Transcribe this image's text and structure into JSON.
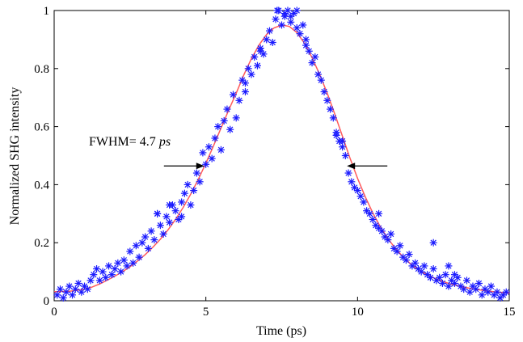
{
  "chart_data": {
    "type": "scatter",
    "xlabel": "Time (ps)",
    "ylabel": "Normalized SHG intensity",
    "xlim": [
      0,
      15
    ],
    "ylim": [
      0,
      1
    ],
    "xticks": [
      "0",
      "5",
      "10",
      "15"
    ],
    "yticks": [
      "0",
      "0.2",
      "0.4",
      "0.6",
      "0.8",
      "1"
    ],
    "grid": false,
    "annotation": {
      "prefix": "FWHM= 4.7 ",
      "unit": "ps",
      "fwhm_from": 4.95,
      "fwhm_to": 9.65,
      "level": 0.47
    },
    "series": [
      {
        "kind": "markers",
        "marker": "asterisk",
        "color": "#1a1aff",
        "x": [
          0.1,
          0.2,
          0.3,
          0.4,
          0.5,
          0.6,
          0.7,
          0.8,
          0.9,
          1.0,
          1.1,
          1.2,
          1.3,
          1.4,
          1.5,
          1.6,
          1.7,
          1.8,
          1.9,
          2.0,
          2.1,
          2.2,
          2.3,
          2.4,
          2.5,
          2.6,
          2.7,
          2.8,
          2.9,
          3.0,
          3.1,
          3.2,
          3.3,
          3.4,
          3.5,
          3.6,
          3.7,
          3.8,
          3.9,
          4.0,
          4.1,
          4.2,
          4.3,
          4.4,
          4.5,
          4.6,
          4.7,
          4.8,
          4.9,
          5.0,
          5.1,
          5.2,
          5.3,
          5.4,
          5.5,
          5.6,
          5.7,
          5.8,
          5.9,
          6.0,
          6.1,
          6.2,
          6.3,
          6.4,
          6.5,
          6.6,
          6.7,
          6.8,
          6.9,
          7.0,
          7.1,
          7.2,
          7.3,
          7.4,
          7.5,
          7.6,
          7.7,
          7.8,
          7.9,
          8.0,
          8.1,
          8.2,
          8.3,
          8.4,
          8.5,
          8.6,
          8.7,
          8.8,
          8.9,
          9.0,
          9.1,
          9.2,
          9.3,
          9.4,
          9.5,
          9.6,
          9.7,
          9.8,
          9.9,
          10.0,
          10.1,
          10.2,
          10.3,
          10.4,
          10.5,
          10.6,
          10.7,
          10.8,
          10.9,
          11.0,
          11.1,
          11.2,
          11.3,
          11.4,
          11.5,
          11.6,
          11.7,
          11.8,
          11.9,
          12.0,
          12.1,
          12.2,
          12.3,
          12.4,
          12.5,
          12.6,
          12.7,
          12.8,
          12.9,
          13.0,
          13.1,
          13.2,
          13.3,
          13.4,
          13.5,
          13.6,
          13.7,
          13.8,
          13.9,
          14.0,
          14.1,
          14.2,
          14.3,
          14.4,
          14.5,
          14.6,
          14.7,
          14.8,
          14.9,
          3.4,
          3.8,
          4.2,
          6.3,
          6.8,
          7.35,
          7.6,
          7.8,
          8.0,
          8.3,
          9.3,
          9.5,
          10.7,
          12.5,
          13.0,
          13.2
        ],
        "y": [
          0.02,
          0.04,
          0.01,
          0.03,
          0.05,
          0.02,
          0.04,
          0.06,
          0.03,
          0.05,
          0.04,
          0.07,
          0.09,
          0.11,
          0.07,
          0.1,
          0.08,
          0.12,
          0.09,
          0.11,
          0.13,
          0.1,
          0.14,
          0.12,
          0.17,
          0.13,
          0.19,
          0.15,
          0.2,
          0.22,
          0.18,
          0.24,
          0.21,
          0.3,
          0.26,
          0.23,
          0.29,
          0.27,
          0.33,
          0.31,
          0.28,
          0.34,
          0.37,
          0.4,
          0.33,
          0.38,
          0.44,
          0.41,
          0.51,
          0.47,
          0.53,
          0.49,
          0.56,
          0.6,
          0.52,
          0.62,
          0.66,
          0.59,
          0.71,
          0.63,
          0.69,
          0.76,
          0.72,
          0.8,
          0.78,
          0.84,
          0.81,
          0.87,
          0.85,
          0.9,
          0.93,
          0.89,
          0.97,
          1.0,
          0.95,
          0.98,
          1.0,
          0.96,
          0.99,
          0.94,
          0.92,
          0.95,
          0.88,
          0.86,
          0.82,
          0.84,
          0.78,
          0.76,
          0.72,
          0.69,
          0.66,
          0.63,
          0.57,
          0.55,
          0.53,
          0.5,
          0.44,
          0.41,
          0.39,
          0.38,
          0.36,
          0.34,
          0.31,
          0.3,
          0.28,
          0.26,
          0.25,
          0.24,
          0.22,
          0.21,
          0.23,
          0.18,
          0.17,
          0.19,
          0.15,
          0.14,
          0.16,
          0.12,
          0.13,
          0.11,
          0.1,
          0.12,
          0.09,
          0.08,
          0.11,
          0.07,
          0.08,
          0.06,
          0.09,
          0.05,
          0.07,
          0.06,
          0.08,
          0.05,
          0.04,
          0.07,
          0.03,
          0.05,
          0.04,
          0.06,
          0.02,
          0.04,
          0.03,
          0.05,
          0.02,
          0.03,
          0.01,
          0.02,
          0.03,
          0.3,
          0.33,
          0.29,
          0.75,
          0.86,
          1.0,
          0.99,
          0.98,
          1.0,
          0.9,
          0.58,
          0.55,
          0.3,
          0.2,
          0.12,
          0.09
        ]
      },
      {
        "kind": "line",
        "color": "#ff5a5a",
        "x": [
          0.0,
          0.25,
          0.5,
          0.75,
          1.0,
          1.25,
          1.5,
          1.75,
          2.0,
          2.25,
          2.5,
          2.75,
          3.0,
          3.25,
          3.5,
          3.75,
          4.0,
          4.25,
          4.5,
          4.75,
          5.0,
          5.25,
          5.5,
          5.75,
          6.0,
          6.25,
          6.5,
          6.75,
          7.0,
          7.25,
          7.5,
          7.75,
          8.0,
          8.25,
          8.5,
          8.75,
          9.0,
          9.25,
          9.5,
          9.75,
          10.0,
          10.25,
          10.5,
          10.75,
          11.0,
          11.25,
          11.5,
          11.75,
          12.0,
          12.25,
          12.5,
          12.75,
          13.0,
          13.25,
          13.5,
          13.75,
          14.0,
          14.25,
          14.5,
          14.75,
          15.0
        ],
        "y": [
          0.031,
          0.032,
          0.033,
          0.036,
          0.04,
          0.047,
          0.058,
          0.071,
          0.085,
          0.1,
          0.117,
          0.137,
          0.159,
          0.184,
          0.212,
          0.244,
          0.28,
          0.321,
          0.367,
          0.418,
          0.474,
          0.533,
          0.595,
          0.656,
          0.715,
          0.778,
          0.834,
          0.881,
          0.917,
          0.94,
          0.95,
          0.945,
          0.924,
          0.887,
          0.838,
          0.78,
          0.715,
          0.643,
          0.567,
          0.492,
          0.422,
          0.359,
          0.303,
          0.255,
          0.214,
          0.18,
          0.151,
          0.127,
          0.108,
          0.092,
          0.079,
          0.069,
          0.06,
          0.053,
          0.047,
          0.042,
          0.038,
          0.034,
          0.031,
          0.029,
          0.027
        ]
      }
    ]
  }
}
